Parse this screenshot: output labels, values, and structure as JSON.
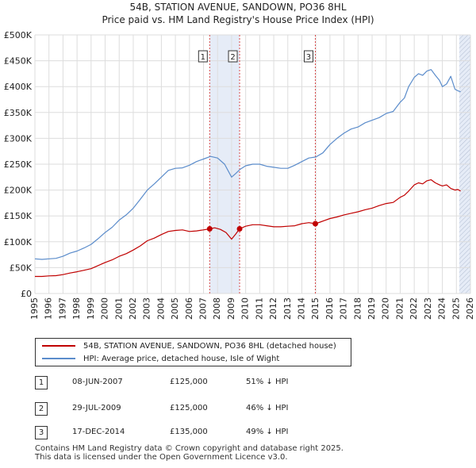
{
  "header": {
    "title_line1": "54B, STATION AVENUE, SANDOWN, PO36 8HL",
    "title_line2": "Price paid vs. HM Land Registry's House Price Index (HPI)"
  },
  "colors": {
    "price_line": "#c00000",
    "hpi_line": "#5b8ccb",
    "shade": "#e6ecf7",
    "grid": "#dddddd",
    "marker_vline": "#d94a4a"
  },
  "chart_data": {
    "type": "line",
    "xlim": [
      1995,
      2026
    ],
    "ylim": [
      0,
      500000
    ],
    "x_ticks": [
      "1995",
      "1996",
      "1997",
      "1998",
      "1999",
      "2000",
      "2001",
      "2002",
      "2003",
      "2004",
      "2005",
      "2006",
      "2007",
      "2008",
      "2009",
      "2010",
      "2011",
      "2012",
      "2013",
      "2014",
      "2015",
      "2016",
      "2017",
      "2018",
      "2019",
      "2020",
      "2021",
      "2022",
      "2023",
      "2024",
      "2025",
      "2026"
    ],
    "y_ticks": [
      {
        "value": 0,
        "label": "£0"
      },
      {
        "value": 50000,
        "label": "£50K"
      },
      {
        "value": 100000,
        "label": "£100K"
      },
      {
        "value": 150000,
        "label": "£150K"
      },
      {
        "value": 200000,
        "label": "£200K"
      },
      {
        "value": 250000,
        "label": "£250K"
      },
      {
        "value": 300000,
        "label": "£300K"
      },
      {
        "value": 350000,
        "label": "£350K"
      },
      {
        "value": 400000,
        "label": "£400K"
      },
      {
        "value": 450000,
        "label": "£450K"
      },
      {
        "value": 500000,
        "label": "£500K"
      }
    ],
    "shaded_ranges": [
      [
        2007.44,
        2009.57
      ],
      [
        2025.2,
        2026
      ]
    ],
    "hatched_range": [
      2025.2,
      2026
    ],
    "series": [
      {
        "name": "HPI: Average price, detached house, Isle of Wight",
        "color": "#5b8ccb",
        "x": [
          1995,
          1995.5,
          1996,
          1996.5,
          1997,
          1997.5,
          1998,
          1998.5,
          1999,
          1999.5,
          2000,
          2000.5,
          2001,
          2001.5,
          2002,
          2002.5,
          2003,
          2003.5,
          2004,
          2004.5,
          2005,
          2005.5,
          2006,
          2006.5,
          2007,
          2007.5,
          2008,
          2008.5,
          2009,
          2009.3,
          2009.6,
          2010,
          2010.5,
          2011,
          2011.5,
          2012,
          2012.5,
          2013,
          2013.5,
          2014,
          2014.5,
          2015,
          2015.5,
          2016,
          2016.5,
          2017,
          2017.5,
          2018,
          2018.5,
          2019,
          2019.5,
          2020,
          2020.5,
          2021,
          2021.3,
          2021.6,
          2022,
          2022.3,
          2022.6,
          2022.9,
          2023.2,
          2023.5,
          2023.8,
          2024,
          2024.3,
          2024.6,
          2024.9,
          2025.1,
          2025.3
        ],
        "values": [
          67000,
          66000,
          67000,
          68000,
          72000,
          78000,
          82000,
          88000,
          95000,
          106000,
          118000,
          128000,
          142000,
          152000,
          165000,
          182000,
          200000,
          212000,
          225000,
          238000,
          242000,
          243000,
          248000,
          255000,
          260000,
          265000,
          262000,
          250000,
          225000,
          232000,
          240000,
          247000,
          250000,
          250000,
          246000,
          244000,
          242000,
          242000,
          248000,
          255000,
          262000,
          264000,
          272000,
          288000,
          300000,
          310000,
          318000,
          322000,
          330000,
          335000,
          340000,
          348000,
          352000,
          370000,
          378000,
          400000,
          418000,
          425000,
          422000,
          430000,
          433000,
          422000,
          412000,
          400000,
          405000,
          420000,
          395000,
          392000,
          390000
        ]
      },
      {
        "name": "54B, STATION AVENUE, SANDOWN, PO36 8HL (detached house)",
        "color": "#c00000",
        "x": [
          1995,
          1995.5,
          1996,
          1996.5,
          1997,
          1997.5,
          1998,
          1998.5,
          1999,
          1999.5,
          2000,
          2000.5,
          2001,
          2001.5,
          2002,
          2002.5,
          2003,
          2003.5,
          2004,
          2004.5,
          2005,
          2005.5,
          2006,
          2006.5,
          2007,
          2007.44,
          2007.8,
          2008.2,
          2008.6,
          2009,
          2009.3,
          2009.57,
          2010,
          2010.5,
          2011,
          2011.5,
          2012,
          2012.5,
          2013,
          2013.5,
          2014,
          2014.5,
          2014.96,
          2015.3,
          2015.6,
          2016,
          2016.5,
          2017,
          2017.5,
          2018,
          2018.5,
          2019,
          2019.5,
          2020,
          2020.5,
          2021,
          2021.3,
          2021.6,
          2022,
          2022.3,
          2022.6,
          2022.9,
          2023.2,
          2023.5,
          2023.8,
          2024,
          2024.3,
          2024.6,
          2024.9,
          2025.1,
          2025.3
        ],
        "values": [
          33000,
          33000,
          34000,
          34500,
          36500,
          39500,
          42000,
          45000,
          48000,
          54000,
          60000,
          65000,
          72000,
          77000,
          84000,
          92000,
          102000,
          107000,
          114000,
          120000,
          122000,
          123000,
          120000,
          121000,
          123000,
          125000,
          127000,
          124000,
          118000,
          105000,
          115000,
          125000,
          130000,
          133000,
          133000,
          131000,
          129000,
          129000,
          130000,
          131000,
          135000,
          137000,
          135000,
          138000,
          141000,
          145000,
          148000,
          152000,
          155000,
          158000,
          162000,
          165000,
          170000,
          174000,
          176000,
          186000,
          190000,
          198000,
          210000,
          214000,
          212000,
          218000,
          220000,
          214000,
          210000,
          208000,
          210000,
          203000,
          200000,
          201000,
          198000
        ]
      }
    ],
    "sales": [
      {
        "id": "1",
        "x": 2007.44,
        "value": 125000
      },
      {
        "id": "2",
        "x": 2009.57,
        "value": 125000
      },
      {
        "id": "3",
        "x": 2014.96,
        "value": 135000
      }
    ]
  },
  "legend": {
    "property_label": "54B, STATION AVENUE, SANDOWN, PO36 8HL (detached house)",
    "hpi_label": "HPI: Average price, detached house, Isle of Wight"
  },
  "transactions": [
    {
      "num": "1",
      "date": "08-JUN-2007",
      "price": "£125,000",
      "hpi": "51% ↓ HPI"
    },
    {
      "num": "2",
      "date": "29-JUL-2009",
      "price": "£125,000",
      "hpi": "46% ↓ HPI"
    },
    {
      "num": "3",
      "date": "17-DEC-2014",
      "price": "£135,000",
      "hpi": "49% ↓ HPI"
    }
  ],
  "footer": {
    "line1": "Contains HM Land Registry data © Crown copyright and database right 2025.",
    "line2": "This data is licensed under the Open Government Licence v3.0."
  }
}
